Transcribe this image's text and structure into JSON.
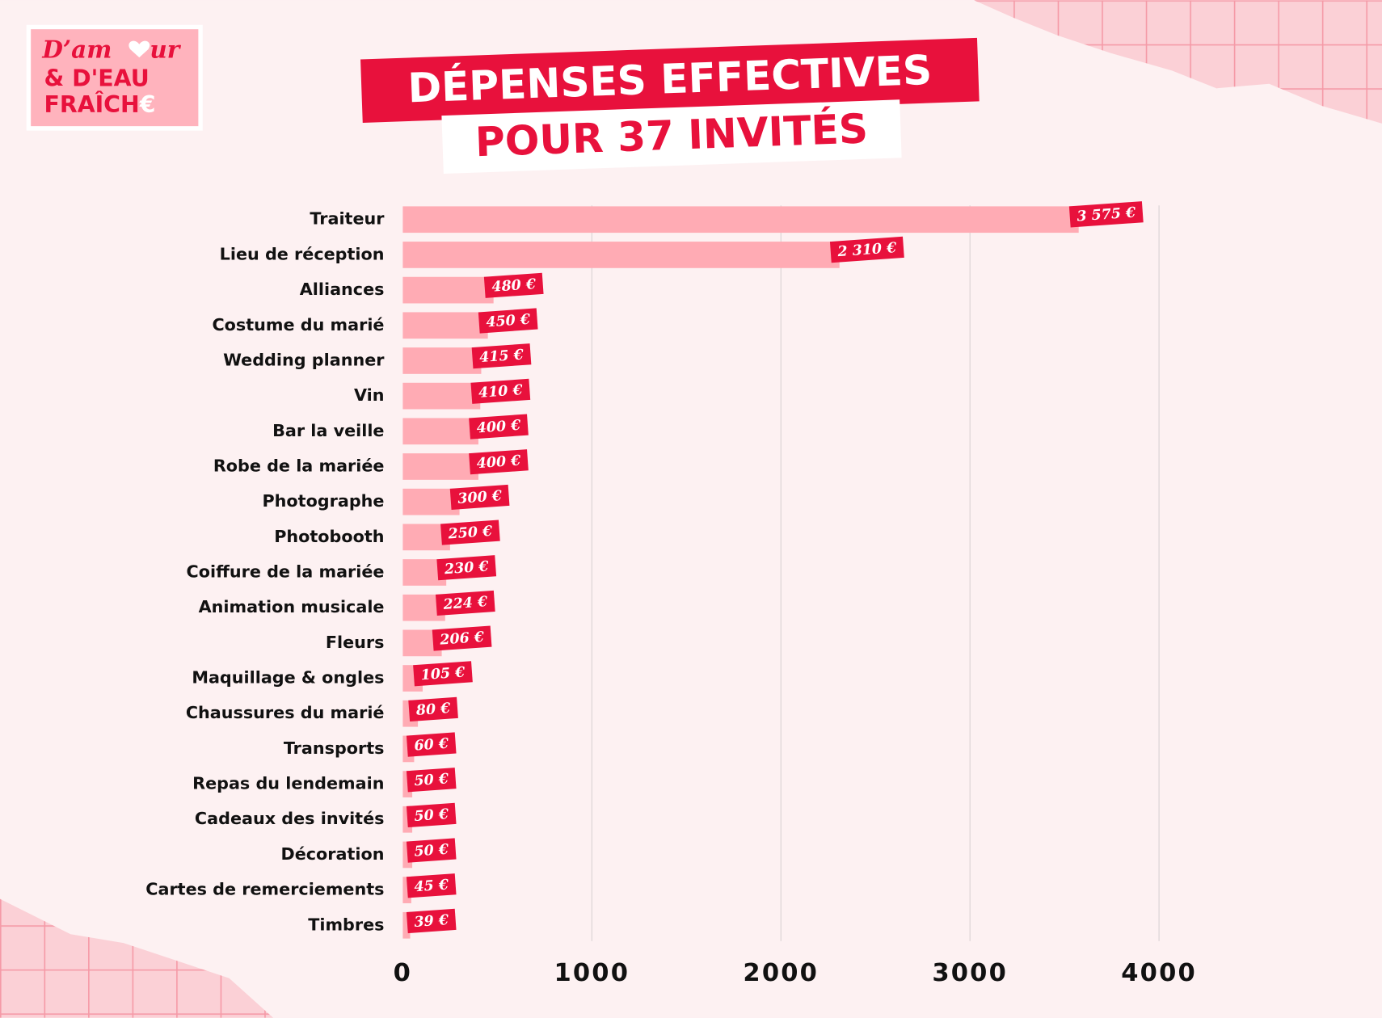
{
  "logo": {
    "line1_start": "D’am",
    "line1_end": "ur",
    "line2": "& D'EAU",
    "line3_start": "FRAÎCH",
    "line3_end": "€"
  },
  "chart_data": {
    "type": "barh",
    "title": "DÉPENSES EFFECTIVES",
    "subtitle": "POUR 37 INVITÉS",
    "categories": [
      "Traiteur",
      "Lieu de réception",
      "Alliances",
      "Costume du marié",
      "Wedding planner",
      "Vin",
      "Bar la veille",
      "Robe de la mariée",
      "Photographe",
      "Photobooth",
      "Coiffure de la mariée",
      "Animation musicale",
      "Fleurs",
      "Maquillage & ongles",
      "Chaussures du marié",
      "Transports",
      "Repas du lendemain",
      "Cadeaux des invités",
      "Décoration",
      "Cartes de remerciements",
      "Timbres"
    ],
    "values": [
      3575,
      2310,
      480,
      450,
      415,
      410,
      400,
      400,
      300,
      250,
      230,
      224,
      206,
      105,
      80,
      60,
      50,
      50,
      50,
      45,
      39
    ],
    "value_labels": [
      "3 575 €",
      "2 310 €",
      "480 €",
      "450 €",
      "415 €",
      "410 €",
      "400 €",
      "400 €",
      "300 €",
      "250 €",
      "230 €",
      "224 €",
      "206 €",
      "105 €",
      "80 €",
      "60 €",
      "50 €",
      "50 €",
      "50 €",
      "45 €",
      "39 €"
    ],
    "color": "#ffabb4",
    "label_color": "#e8113c",
    "xlim": [
      0,
      4000
    ],
    "xticks": [
      0,
      1000,
      2000,
      3000,
      4000
    ],
    "grid": true
  }
}
